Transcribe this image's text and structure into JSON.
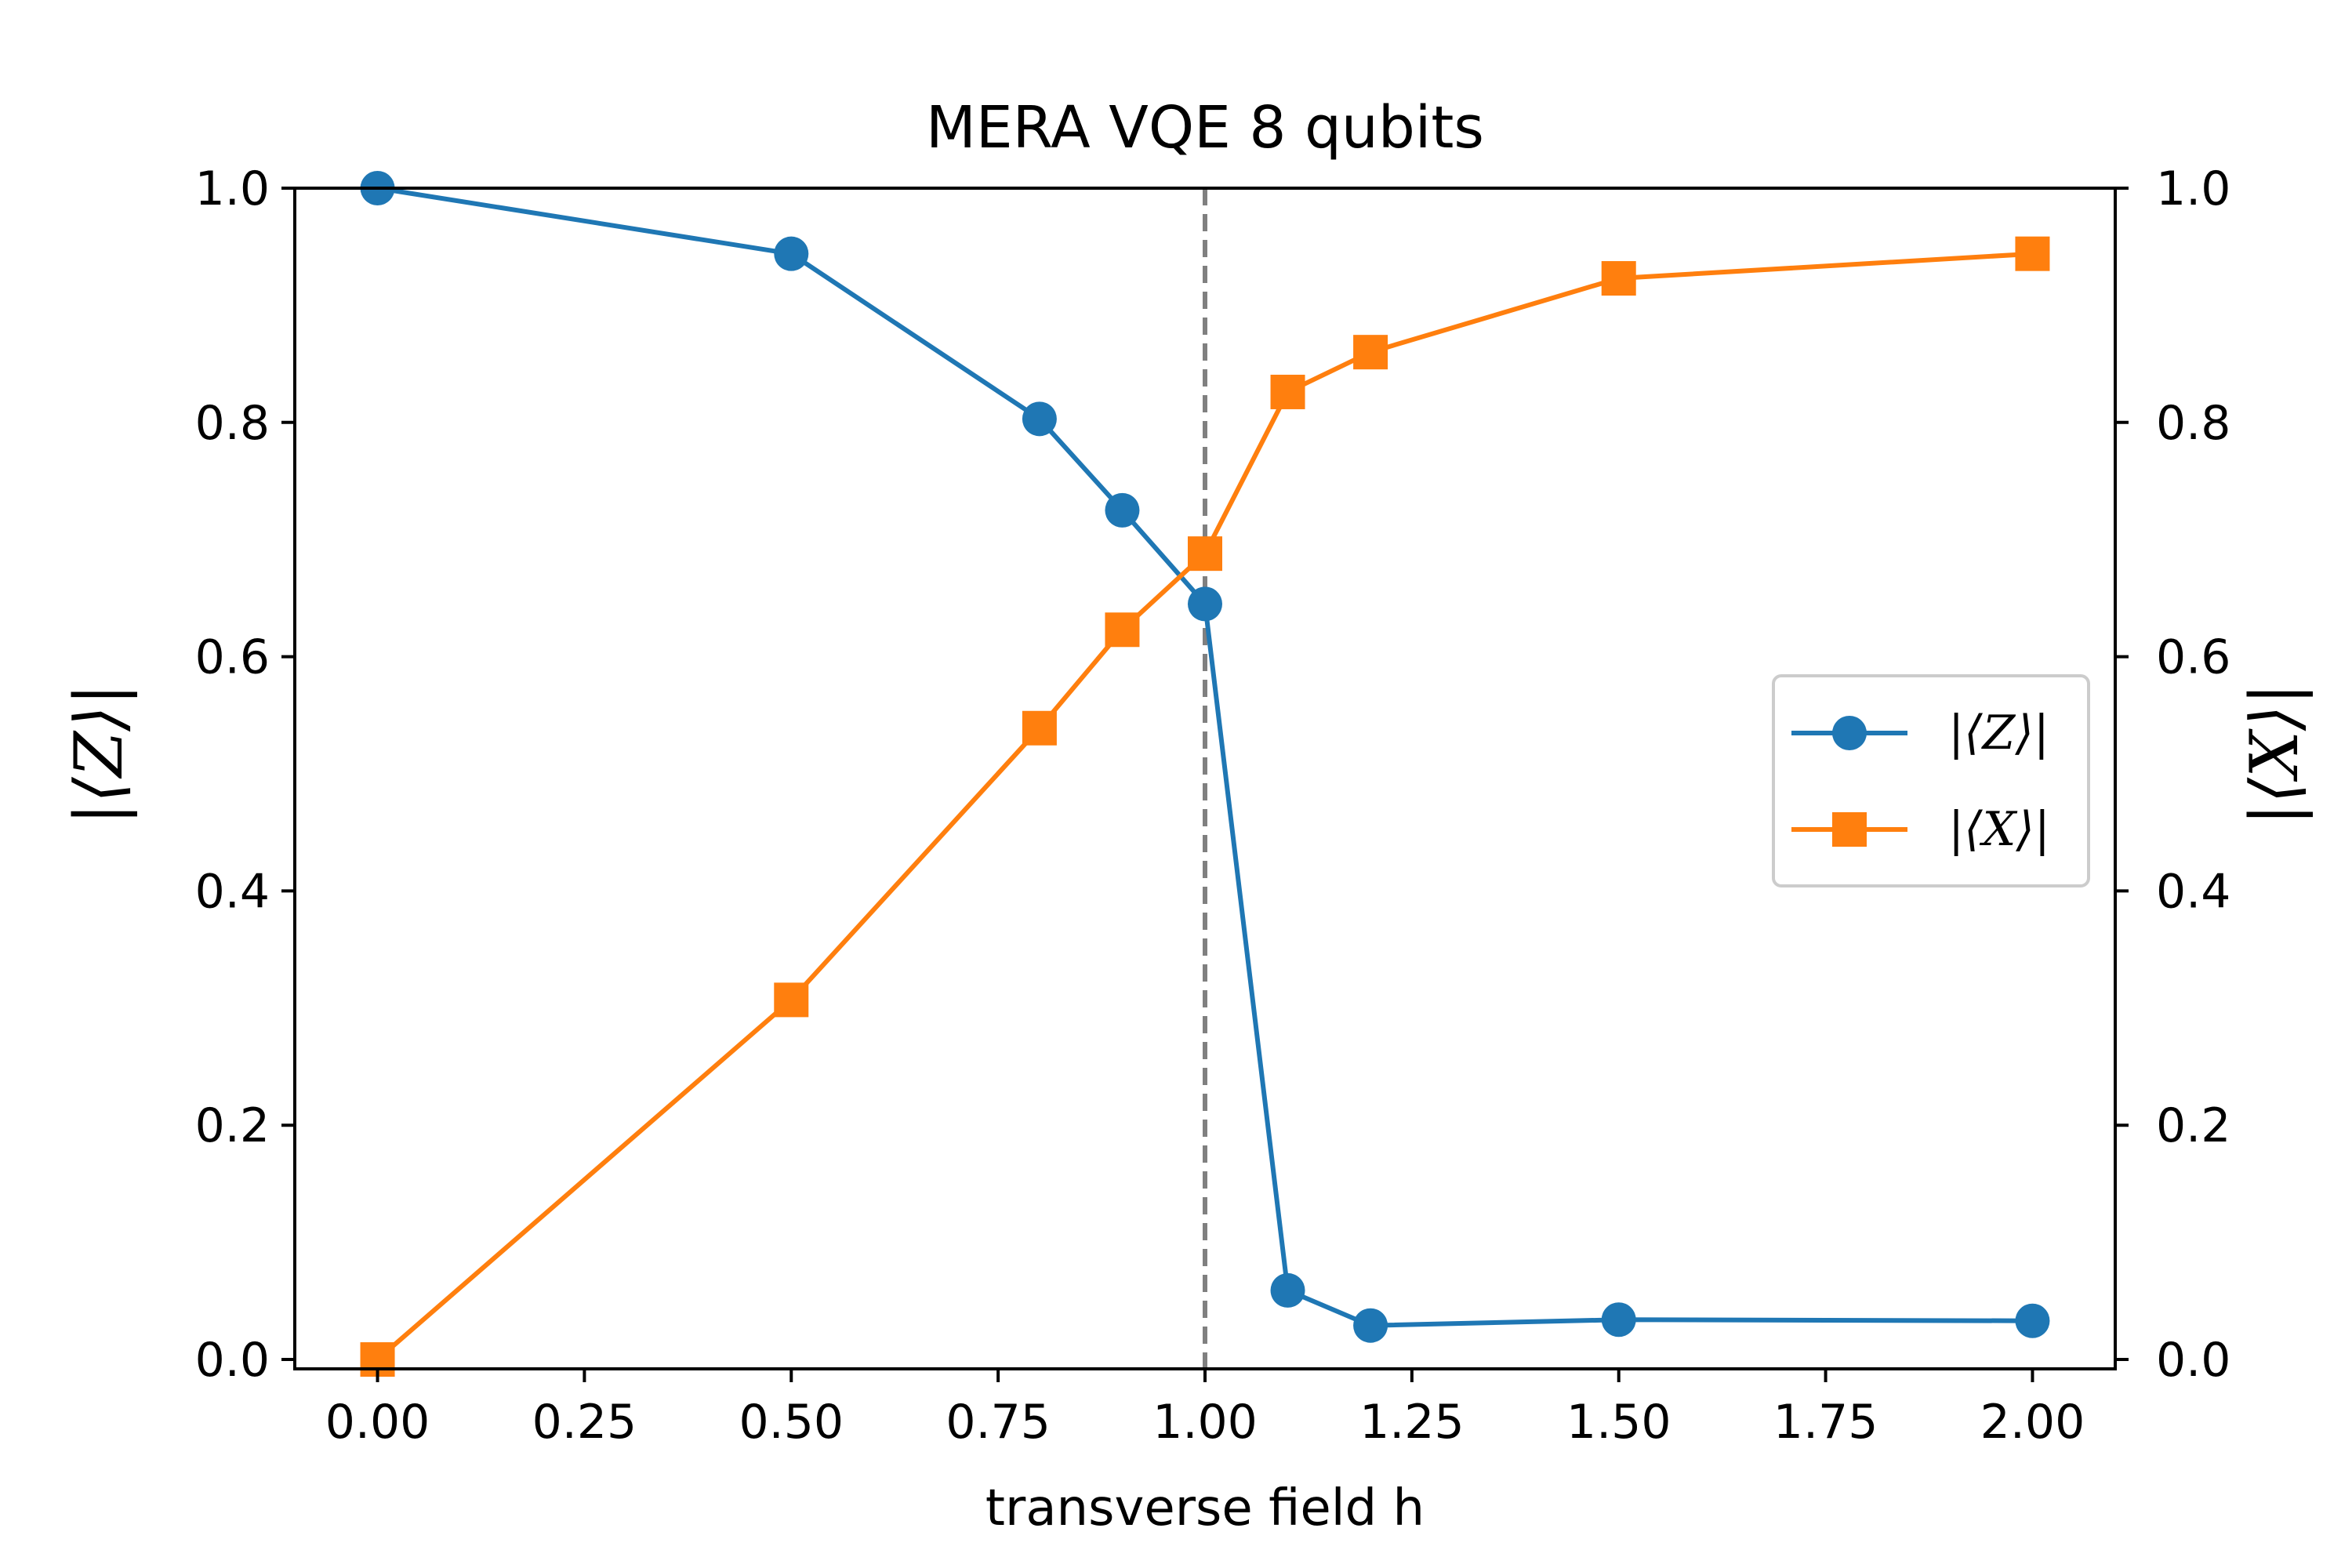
{
  "chart_data": {
    "type": "line",
    "title": "MERA VQE 8 qubits",
    "xlabel": "transverse field h",
    "ylabel_left": "|⟨Z⟩|",
    "ylabel_right": "|⟨X⟩|",
    "xlim": [
      -0.1,
      2.1
    ],
    "ylim_left": [
      -0.008,
      1.0
    ],
    "ylim_right": [
      -0.008,
      1.0
    ],
    "x_ticks": [
      "0.00",
      "0.25",
      "0.50",
      "0.75",
      "1.00",
      "1.25",
      "1.50",
      "1.75",
      "2.00"
    ],
    "y_ticks_left": [
      "0.0",
      "0.2",
      "0.4",
      "0.6",
      "0.8",
      "1.0"
    ],
    "y_ticks_right": [
      "0.0",
      "0.2",
      "0.4",
      "0.6",
      "0.8",
      "1.0"
    ],
    "critical_line_x": 1.0,
    "grid": false,
    "legend_position": "center-right",
    "series": [
      {
        "name": "|⟨Z⟩|",
        "axis": "left",
        "color": "#1f77b4",
        "marker": "circle",
        "x": [
          0.0,
          0.5,
          0.8,
          0.9,
          1.0,
          1.1,
          1.2,
          1.5,
          2.0
        ],
        "y": [
          1.0,
          0.944,
          0.803,
          0.725,
          0.645,
          0.059,
          0.029,
          0.034,
          0.033
        ]
      },
      {
        "name": "|⟨X⟩|",
        "axis": "right",
        "color": "#ff7f0e",
        "marker": "square",
        "x": [
          0.0,
          0.5,
          0.8,
          0.9,
          1.0,
          1.1,
          1.2,
          1.5,
          2.0
        ],
        "y": [
          0.0,
          0.307,
          0.539,
          0.623,
          0.688,
          0.826,
          0.86,
          0.923,
          0.944
        ]
      }
    ]
  }
}
